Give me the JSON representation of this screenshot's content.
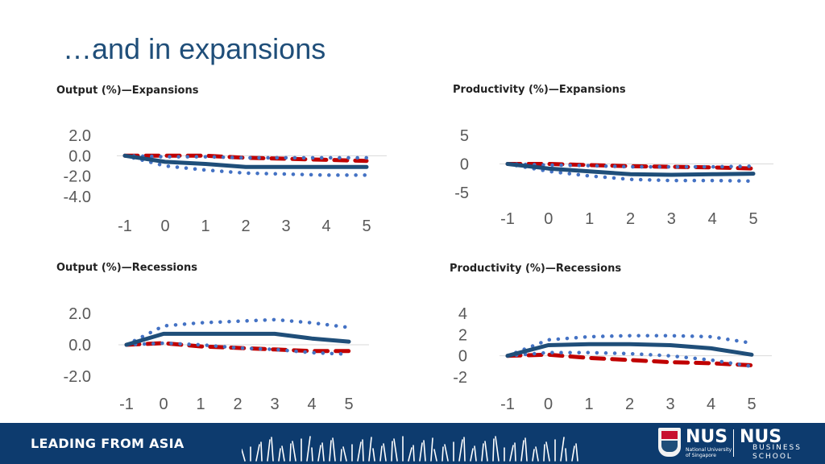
{
  "slide": {
    "title": "…and in expansions"
  },
  "colors": {
    "solid": "#1f4e79",
    "dotted": "#4472c4",
    "dashed": "#c00000",
    "axis": "#d9d9d9",
    "tick_text": "#595959",
    "footer_bg": "#0d3b6e"
  },
  "footer": {
    "tagline": "LEADING FROM ASIA",
    "nus_logo": "NUS",
    "nus_sub": "National University\nof Singapore",
    "nus_logo2": "NUS",
    "business": "BUSINESS",
    "school": "SCHOOL"
  },
  "chart_data": [
    {
      "id": "output-expansions",
      "type": "line",
      "title": "Output (%)—Expansions",
      "x": [
        -1,
        0,
        1,
        2,
        3,
        4,
        5
      ],
      "ylim": [
        -4,
        2
      ],
      "yticks": [
        "2.0",
        "0.0",
        "-2.0",
        "-4.0"
      ],
      "ytick_values": [
        2,
        0,
        -2,
        -4
      ],
      "series": [
        {
          "name": "upper",
          "style": "dotted",
          "values": [
            0,
            -0.1,
            -0.1,
            -0.2,
            -0.2,
            -0.2,
            -0.2
          ]
        },
        {
          "name": "estimate",
          "style": "solid",
          "values": [
            0,
            -0.6,
            -0.8,
            -1.1,
            -1.1,
            -1.1,
            -1.1
          ]
        },
        {
          "name": "lower",
          "style": "dotted",
          "values": [
            0,
            -1.0,
            -1.4,
            -1.7,
            -1.8,
            -1.9,
            -1.9
          ]
        },
        {
          "name": "comparison",
          "style": "dashed",
          "values": [
            0,
            0,
            0,
            -0.2,
            -0.3,
            -0.4,
            -0.5
          ]
        }
      ]
    },
    {
      "id": "productivity-expansions",
      "type": "line",
      "title": "Productivity (%)—Expansions",
      "x": [
        -1,
        0,
        1,
        2,
        3,
        4,
        5
      ],
      "ylim": [
        -5,
        5
      ],
      "yticks": [
        "5",
        "0",
        "-5"
      ],
      "ytick_values": [
        5,
        0,
        -5
      ],
      "series": [
        {
          "name": "upper",
          "style": "dotted",
          "values": [
            0,
            -0.2,
            -0.3,
            -0.5,
            -0.5,
            -0.5,
            -0.4
          ]
        },
        {
          "name": "estimate",
          "style": "solid",
          "values": [
            0,
            -0.8,
            -1.3,
            -1.8,
            -1.9,
            -1.8,
            -1.7
          ]
        },
        {
          "name": "lower",
          "style": "dotted",
          "values": [
            0,
            -1.3,
            -2.1,
            -2.7,
            -2.9,
            -2.9,
            -3.0
          ]
        },
        {
          "name": "comparison",
          "style": "dashed",
          "values": [
            0,
            0,
            -0.2,
            -0.4,
            -0.5,
            -0.6,
            -0.8
          ]
        }
      ]
    },
    {
      "id": "output-recessions",
      "type": "line",
      "title": "Output (%)—Recessions",
      "x": [
        -1,
        0,
        1,
        2,
        3,
        4,
        5
      ],
      "ylim": [
        -2,
        2
      ],
      "yticks": [
        "2.0",
        "0.0",
        "-2.0"
      ],
      "ytick_values": [
        2,
        0,
        -2
      ],
      "series": [
        {
          "name": "upper",
          "style": "dotted",
          "values": [
            0,
            1.2,
            1.4,
            1.5,
            1.6,
            1.4,
            1.1
          ]
        },
        {
          "name": "estimate",
          "style": "solid",
          "values": [
            0,
            0.7,
            0.7,
            0.7,
            0.7,
            0.4,
            0.2
          ]
        },
        {
          "name": "lower",
          "style": "dotted",
          "values": [
            0,
            0.1,
            0,
            -0.2,
            -0.3,
            -0.5,
            -0.6
          ]
        },
        {
          "name": "comparison",
          "style": "dashed",
          "values": [
            0,
            0.1,
            -0.1,
            -0.2,
            -0.3,
            -0.4,
            -0.4
          ]
        }
      ]
    },
    {
      "id": "productivity-recessions",
      "type": "line",
      "title": "Productivity (%)—Recessions",
      "x": [
        -1,
        0,
        1,
        2,
        3,
        4,
        5
      ],
      "ylim": [
        -2,
        4
      ],
      "yticks": [
        "4",
        "2",
        "0",
        "-2"
      ],
      "ytick_values": [
        4,
        2,
        0,
        -2
      ],
      "series": [
        {
          "name": "upper",
          "style": "dotted",
          "values": [
            0,
            1.5,
            1.8,
            1.9,
            1.9,
            1.8,
            1.2
          ]
        },
        {
          "name": "estimate",
          "style": "solid",
          "values": [
            0,
            1.0,
            1.1,
            1.1,
            1.0,
            0.7,
            0.1
          ]
        },
        {
          "name": "lower",
          "style": "dotted",
          "values": [
            0,
            0.3,
            0.3,
            0.2,
            0,
            -0.4,
            -1.0
          ]
        },
        {
          "name": "comparison",
          "style": "dashed",
          "values": [
            0,
            0.1,
            -0.2,
            -0.4,
            -0.6,
            -0.7,
            -0.9
          ]
        }
      ]
    }
  ]
}
